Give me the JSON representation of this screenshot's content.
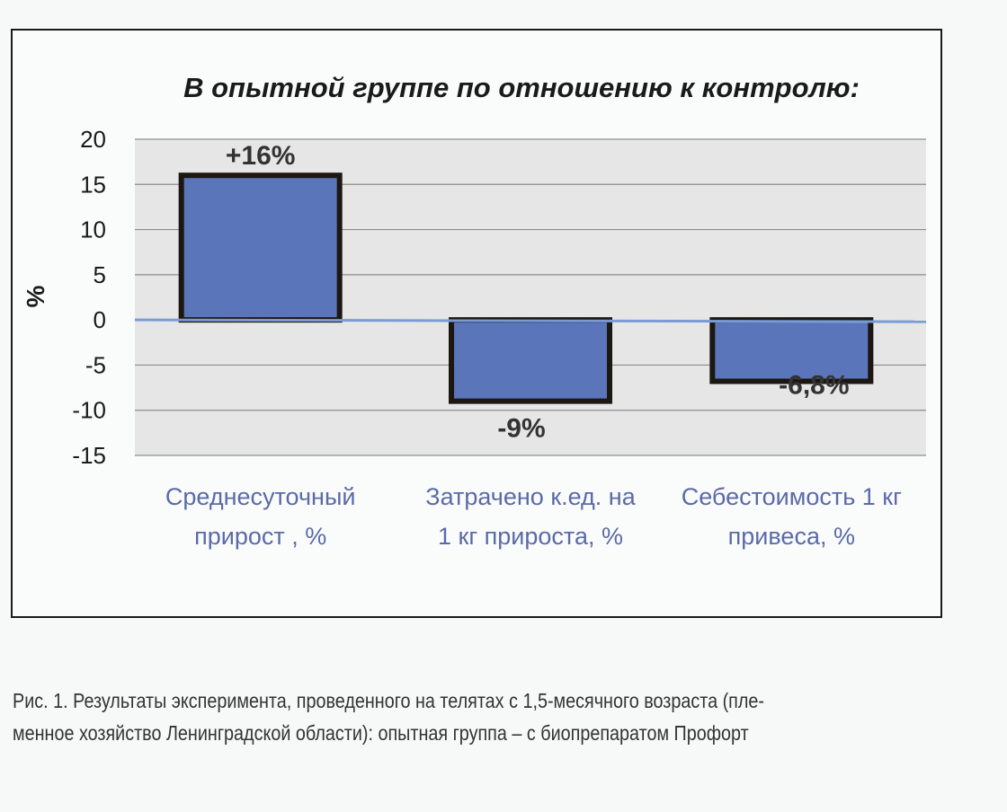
{
  "chart_data": {
    "type": "bar",
    "title": "В опытной группе по отношению к контролю:",
    "ylabel": "%",
    "xlabel": "",
    "categories": [
      [
        "Среднесуточный",
        "прирост , %"
      ],
      [
        "Затрачено к.ед. на",
        "1 кг прироста, %"
      ],
      [
        "Себестоимость 1 кг",
        "привеса, %"
      ]
    ],
    "values": [
      16,
      -9,
      -6.8
    ],
    "data_labels": [
      "+16%",
      "-9%",
      "-6,8%"
    ],
    "ylim": [
      -15,
      20
    ],
    "yticks": [
      20,
      15,
      10,
      5,
      0,
      -5,
      -10,
      -15
    ],
    "grid": true,
    "colors": {
      "bar_fill": "#5b75ba",
      "bar_border": "#1c1710",
      "zero_line": "#7a9bd6",
      "plot_bg": "#e6e6e6",
      "category_text": "#5b6aa8"
    }
  },
  "caption": [
    "Рис. 1. Результаты эксперимента, проведенного на телятах с 1,5-месячного возраста (пле-",
    "менное хозяйство Ленинградской области): опытная группа – с биопрепаратом Профорт"
  ]
}
